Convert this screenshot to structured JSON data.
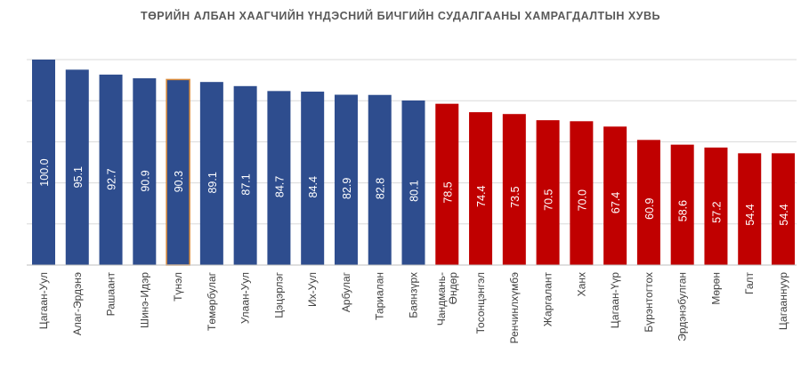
{
  "chart_data": {
    "type": "bar",
    "title": "ТӨРИЙН АЛБАН ХААГЧИЙН ҮНДЭСНИЙ БИЧГИЙН СУДАЛГААНЫ ХАМРАГДАЛТЫН ХУВЬ",
    "xlabel": "",
    "ylabel": "",
    "ylim": [
      0,
      100
    ],
    "grid": true,
    "legend": "none",
    "categories": [
      "Цагаан-Уул",
      "Алаг-Эрдэнэ",
      "Рашаант",
      "Шинэ-Идэр",
      "Түнэл",
      "Төмөрбулаг",
      "Улаан-Уул",
      "Цэцэрлэг",
      "Их-Уул",
      "Арбулаг",
      "Тариалан",
      "Баянзүрх",
      "Чандмань-Өндөр",
      "Тосонцэнгэл",
      "Ренчинлхүмбэ",
      "Жаргалант",
      "Ханх",
      "Цагаан-Үүр",
      "Бүрэнтогтох",
      "Эрдэнэбулган",
      "Мөрөн",
      "Галт",
      "Цагааннуур"
    ],
    "category_lines": [
      [
        "Цагаан-Уул"
      ],
      [
        "Алаг-Эрдэнэ"
      ],
      [
        "Рашаант"
      ],
      [
        "Шинэ-Идэр"
      ],
      [
        "Түнэл"
      ],
      [
        "Төмөрбулаг"
      ],
      [
        "Улаан-Уул"
      ],
      [
        "Цэцэрлэг"
      ],
      [
        "Их-Уул"
      ],
      [
        "Арбулаг"
      ],
      [
        "Тариалан"
      ],
      [
        "Баянзүрх"
      ],
      [
        "Чандмань-",
        "Өндөр"
      ],
      [
        "Тосонцэнгэл"
      ],
      [
        "Ренчинлхүмбэ"
      ],
      [
        "Жаргалант"
      ],
      [
        "Ханх"
      ],
      [
        "Цагаан-Үүр"
      ],
      [
        "Бүрэнтогтох"
      ],
      [
        "Эрдэнэбулган"
      ],
      [
        "Мөрөн"
      ],
      [
        "Галт"
      ],
      [
        "Цагааннуур"
      ]
    ],
    "values": [
      100.0,
      95.1,
      92.7,
      90.9,
      90.3,
      89.1,
      87.1,
      84.7,
      84.4,
      82.9,
      82.8,
      80.1,
      78.5,
      74.4,
      73.5,
      70.5,
      70.0,
      67.4,
      60.9,
      58.6,
      57.2,
      54.4,
      54.4
    ],
    "value_labels": [
      "100.0",
      "95.1",
      "92.7",
      "90.9",
      "90.3",
      "89.1",
      "87.1",
      "84.7",
      "84.4",
      "82.9",
      "82.8",
      "80.1",
      "78.5",
      "74.4",
      "73.5",
      "70.5",
      "70.0",
      "67.4",
      "60.9",
      "58.6",
      "57.2",
      "54.4",
      "54.4"
    ],
    "colors": [
      "#2E4D8E",
      "#2E4D8E",
      "#2E4D8E",
      "#2E4D8E",
      "#2E4D8E",
      "#2E4D8E",
      "#2E4D8E",
      "#2E4D8E",
      "#2E4D8E",
      "#2E4D8E",
      "#2E4D8E",
      "#2E4D8E",
      "#C00000",
      "#C00000",
      "#C00000",
      "#C00000",
      "#C00000",
      "#C00000",
      "#C00000",
      "#C00000",
      "#C00000",
      "#C00000",
      "#C00000"
    ],
    "highlight_index": 4,
    "highlight_outline": "#D98A3A",
    "gridline_color": "#D9D9D9",
    "axis_color": "#BFBFBF",
    "label_color": "#404040"
  }
}
